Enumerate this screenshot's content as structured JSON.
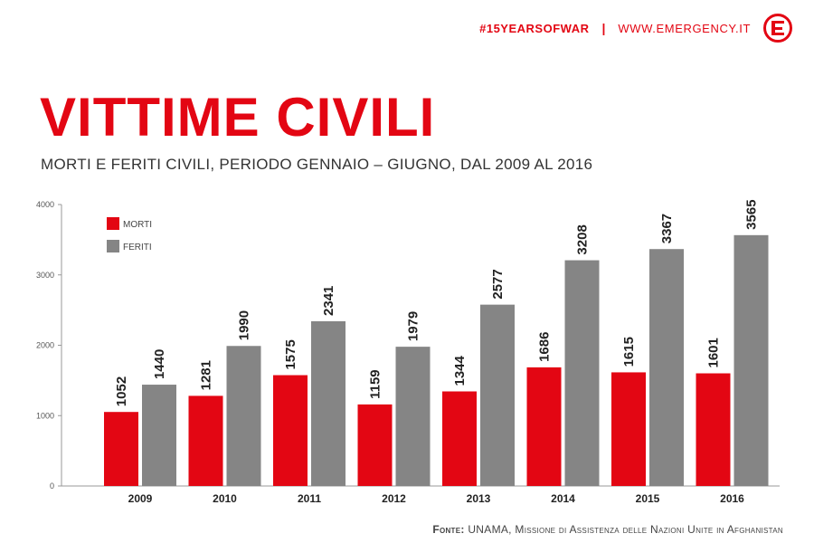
{
  "header": {
    "hashtag": "#15YEARSOFWAR",
    "separator": "|",
    "website": "WWW.EMERGENCY.IT"
  },
  "title": "VITTIME CIVILI",
  "subtitle": "MORTI E FERITI CIVILI, PERIODO GENNAIO – GIUGNO, DAL 2009 AL 2016",
  "source": {
    "label": "Fonte:",
    "text": "UNAMA, Missione di Assistenza delle Nazioni Unite in Afghanistan"
  },
  "colors": {
    "red": "#e30613",
    "grey": "#858585"
  },
  "chart_data": {
    "type": "bar",
    "categories": [
      "2009",
      "2010",
      "2011",
      "2012",
      "2013",
      "2014",
      "2015",
      "2016"
    ],
    "series": [
      {
        "name": "MORTI",
        "color": "#e30613",
        "values": [
          1052,
          1281,
          1575,
          1159,
          1344,
          1686,
          1615,
          1601
        ]
      },
      {
        "name": "FERITI",
        "color": "#858585",
        "values": [
          1440,
          1990,
          2341,
          1979,
          2577,
          3208,
          3367,
          3565
        ]
      }
    ],
    "ylim": [
      0,
      4000
    ],
    "yticks": [
      0,
      1000,
      2000,
      3000,
      4000
    ],
    "title": "",
    "xlabel": "",
    "ylabel": "",
    "legend": "top-left",
    "grid": false
  }
}
